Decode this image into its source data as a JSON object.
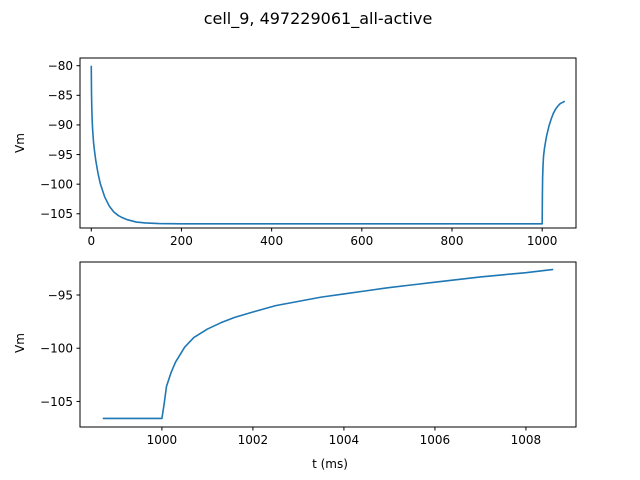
{
  "figure": {
    "title": "cell_9, 497229061_all-active",
    "line_color": "#1f77b4"
  },
  "chart_data": [
    {
      "type": "line",
      "title": "",
      "xlabel": "",
      "ylabel": "Vm",
      "xlim": [
        -25,
        1075
      ],
      "ylim": [
        -107.4,
        -78.7
      ],
      "xticks": [
        0,
        200,
        400,
        600,
        800,
        1000
      ],
      "yticks": [
        -80,
        -85,
        -90,
        -95,
        -100,
        -105
      ],
      "grid": false,
      "series": [
        {
          "x": [
            0,
            0.5,
            1,
            2,
            3,
            5,
            7,
            10,
            15,
            20,
            30,
            40,
            50,
            60,
            70,
            80,
            100,
            120,
            150,
            200,
            300,
            400,
            500,
            600,
            700,
            800,
            900,
            1000,
            1000.5,
            1001,
            1002,
            1003,
            1005,
            1008,
            1010,
            1015,
            1020,
            1025,
            1030,
            1035,
            1040,
            1045,
            1050
          ],
          "y": [
            -80,
            -84.5,
            -86.6,
            -89.2,
            -90.8,
            -92.9,
            -94.3,
            -96.0,
            -98.2,
            -99.9,
            -102.2,
            -103.7,
            -104.7,
            -105.3,
            -105.7,
            -106.0,
            -106.4,
            -106.55,
            -106.65,
            -106.7,
            -106.7,
            -106.7,
            -106.7,
            -106.7,
            -106.7,
            -106.7,
            -106.7,
            -106.7,
            -101.5,
            -98.8,
            -96.7,
            -95.3,
            -94.0,
            -92.6,
            -91.8,
            -90.2,
            -89.0,
            -88.0,
            -87.3,
            -86.8,
            -86.4,
            -86.2,
            -86.0
          ]
        }
      ]
    },
    {
      "type": "line",
      "title": "",
      "xlabel": "t (ms)",
      "ylabel": "Vm",
      "xlim": [
        998.2,
        1009.1
      ],
      "ylim": [
        -107.4,
        -91.9
      ],
      "xticks": [
        1000,
        1002,
        1004,
        1006,
        1008
      ],
      "yticks": [
        -95,
        -100,
        -105
      ],
      "grid": false,
      "series": [
        {
          "x": [
            998.7,
            999.0,
            999.5,
            999.9,
            1000.0,
            1000.05,
            1000.1,
            1000.2,
            1000.3,
            1000.5,
            1000.7,
            1001.0,
            1001.3,
            1001.6,
            1002.0,
            1002.5,
            1003.0,
            1003.5,
            1004.0,
            1004.5,
            1005.0,
            1005.5,
            1006.0,
            1006.5,
            1007.0,
            1007.5,
            1008.0,
            1008.6
          ],
          "y": [
            -106.6,
            -106.6,
            -106.6,
            -106.6,
            -106.6,
            -105.2,
            -103.6,
            -102.3,
            -101.3,
            -99.9,
            -99.0,
            -98.2,
            -97.6,
            -97.1,
            -96.6,
            -96.0,
            -95.6,
            -95.2,
            -94.9,
            -94.6,
            -94.3,
            -94.05,
            -93.8,
            -93.55,
            -93.3,
            -93.1,
            -92.9,
            -92.6
          ]
        }
      ]
    }
  ]
}
